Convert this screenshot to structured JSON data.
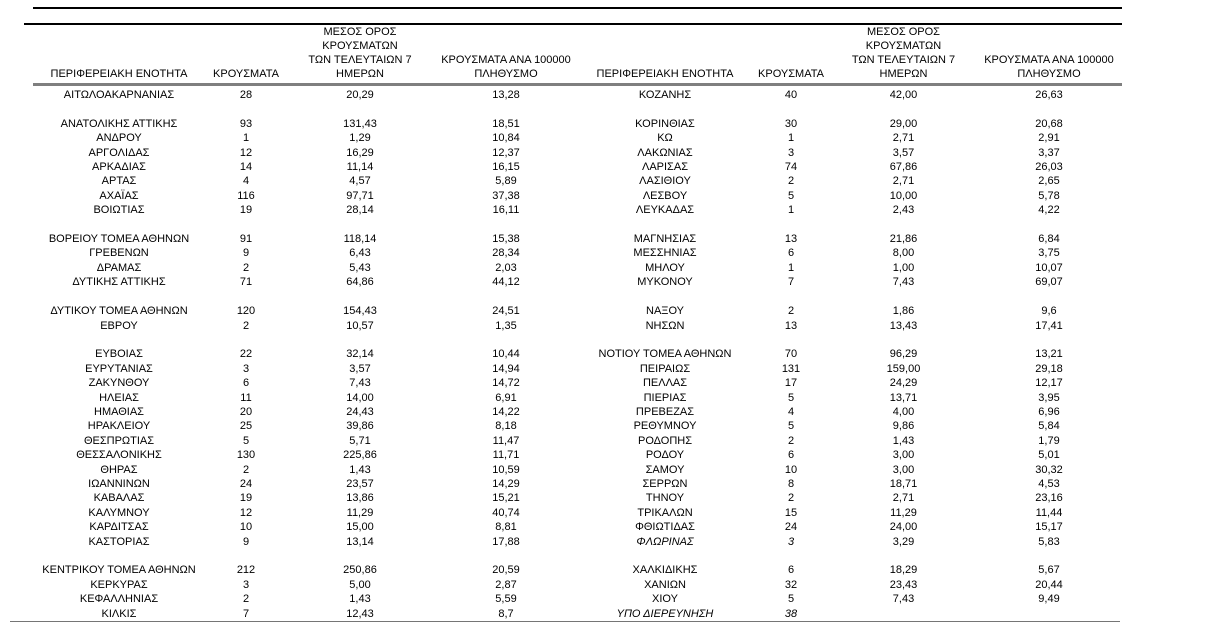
{
  "document": {
    "colors": {
      "text": "#000000",
      "rule_dark": "#000000",
      "rule_gray": "#7f7f7f"
    },
    "headers": {
      "region": "ΠΕΡΙΦΕΡΕΙΑΚΗ ΕΝΟΤΗΤΑ",
      "cases": "ΚΡΟΥΣΜΑΤΑ",
      "avg7": "ΜΕΣΟΣ ΟΡΟΣ ΚΡΟΥΣΜΑΤΩΝ\nΤΩΝ ΤΕΛΕΥΤΑΙΩΝ 7\nΗΜΕΡΩΝ",
      "per100k": "ΚΡΟΥΣΜΑΤΑ ΑΝΑ 100000\nΠΛΗΘΥΣΜΟ"
    },
    "left_rows": [
      {
        "region": "ΑΙΤΩΛΟΑΚΑΡΝΑΝΙΑΣ",
        "cases": "28",
        "avg7": "20,29",
        "per100k": "13,28"
      },
      {
        "region": "",
        "cases": "",
        "avg7": "",
        "per100k": ""
      },
      {
        "region": "ΑΝΑΤΟΛΙΚΗΣ ΑΤΤΙΚΗΣ",
        "cases": "93",
        "avg7": "131,43",
        "per100k": "18,51"
      },
      {
        "region": "ΑΝΔΡΟΥ",
        "cases": "1",
        "avg7": "1,29",
        "per100k": "10,84"
      },
      {
        "region": "ΑΡΓΟΛΙΔΑΣ",
        "cases": "12",
        "avg7": "16,29",
        "per100k": "12,37"
      },
      {
        "region": "ΑΡΚΑΔΙΑΣ",
        "cases": "14",
        "avg7": "11,14",
        "per100k": "16,15"
      },
      {
        "region": "ΑΡΤΑΣ",
        "cases": "4",
        "avg7": "4,57",
        "per100k": "5,89"
      },
      {
        "region": "ΑΧΑΪΑΣ",
        "cases": "116",
        "avg7": "97,71",
        "per100k": "37,38"
      },
      {
        "region": "ΒΟΙΩΤΙΑΣ",
        "cases": "19",
        "avg7": "28,14",
        "per100k": "16,11"
      },
      {
        "region": "",
        "cases": "",
        "avg7": "",
        "per100k": ""
      },
      {
        "region": "ΒΟΡΕΙΟΥ ΤΟΜΕΑ ΑΘΗΝΩΝ",
        "cases": "91",
        "avg7": "118,14",
        "per100k": "15,38"
      },
      {
        "region": "ΓΡΕΒΕΝΩΝ",
        "cases": "9",
        "avg7": "6,43",
        "per100k": "28,34"
      },
      {
        "region": "ΔΡΑΜΑΣ",
        "cases": "2",
        "avg7": "5,43",
        "per100k": "2,03"
      },
      {
        "region": "ΔΥΤΙΚΗΣ ΑΤΤΙΚΗΣ",
        "cases": "71",
        "avg7": "64,86",
        "per100k": "44,12"
      },
      {
        "region": "",
        "cases": "",
        "avg7": "",
        "per100k": ""
      },
      {
        "region": "ΔΥΤΙΚΟΥ ΤΟΜΕΑ ΑΘΗΝΩΝ",
        "cases": "120",
        "avg7": "154,43",
        "per100k": "24,51"
      },
      {
        "region": "ΕΒΡΟΥ",
        "cases": "2",
        "avg7": "10,57",
        "per100k": "1,35"
      },
      {
        "region": "",
        "cases": "",
        "avg7": "",
        "per100k": ""
      },
      {
        "region": "ΕΥΒΟΙΑΣ",
        "cases": "22",
        "avg7": "32,14",
        "per100k": "10,44"
      },
      {
        "region": "ΕΥΡΥΤΑΝΙΑΣ",
        "cases": "3",
        "avg7": "3,57",
        "per100k": "14,94"
      },
      {
        "region": "ΖΑΚΥΝΘΟΥ",
        "cases": "6",
        "avg7": "7,43",
        "per100k": "14,72"
      },
      {
        "region": "ΗΛΕΙΑΣ",
        "cases": "11",
        "avg7": "14,00",
        "per100k": "6,91"
      },
      {
        "region": "ΗΜΑΘΙΑΣ",
        "cases": "20",
        "avg7": "24,43",
        "per100k": "14,22"
      },
      {
        "region": "ΗΡΑΚΛΕΙΟΥ",
        "cases": "25",
        "avg7": "39,86",
        "per100k": "8,18"
      },
      {
        "region": "ΘΕΣΠΡΩΤΙΑΣ",
        "cases": "5",
        "avg7": "5,71",
        "per100k": "11,47"
      },
      {
        "region": "ΘΕΣΣΑΛΟΝΙΚΗΣ",
        "cases": "130",
        "avg7": "225,86",
        "per100k": "11,71"
      },
      {
        "region": "ΘΗΡΑΣ",
        "cases": "2",
        "avg7": "1,43",
        "per100k": "10,59"
      },
      {
        "region": "ΙΩΑΝΝΙΝΩΝ",
        "cases": "24",
        "avg7": "23,57",
        "per100k": "14,29"
      },
      {
        "region": "ΚΑΒΑΛΑΣ",
        "cases": "19",
        "avg7": "13,86",
        "per100k": "15,21"
      },
      {
        "region": "ΚΑΛΥΜΝΟΥ",
        "cases": "12",
        "avg7": "11,29",
        "per100k": "40,74"
      },
      {
        "region": "ΚΑΡΔΙΤΣΑΣ",
        "cases": "10",
        "avg7": "15,00",
        "per100k": "8,81"
      },
      {
        "region": "ΚΑΣΤΟΡΙΑΣ",
        "cases": "9",
        "avg7": "13,14",
        "per100k": "17,88"
      },
      {
        "region": "",
        "cases": "",
        "avg7": "",
        "per100k": ""
      },
      {
        "region": "ΚΕΝΤΡΙΚΟΥ ΤΟΜΕΑ ΑΘΗΝΩΝ",
        "cases": "212",
        "avg7": "250,86",
        "per100k": "20,59"
      },
      {
        "region": "ΚΕΡΚΥΡΑΣ",
        "cases": "3",
        "avg7": "5,00",
        "per100k": "2,87"
      },
      {
        "region": "ΚΕΦΑΛΛΗΝΙΑΣ",
        "cases": "2",
        "avg7": "1,43",
        "per100k": "5,59"
      },
      {
        "region": "ΚΙΛΚΙΣ",
        "cases": "7",
        "avg7": "12,43",
        "per100k": "8,7"
      }
    ],
    "right_rows": [
      {
        "region": "ΚΟΖΑΝΗΣ",
        "cases": "40",
        "avg7": "42,00",
        "per100k": "26,63"
      },
      {
        "region": "",
        "cases": "",
        "avg7": "",
        "per100k": ""
      },
      {
        "region": "ΚΟΡΙΝΘΙΑΣ",
        "cases": "30",
        "avg7": "29,00",
        "per100k": "20,68"
      },
      {
        "region": "ΚΩ",
        "cases": "1",
        "avg7": "2,71",
        "per100k": "2,91"
      },
      {
        "region": "ΛΑΚΩΝΙΑΣ",
        "cases": "3",
        "avg7": "3,57",
        "per100k": "3,37"
      },
      {
        "region": "ΛΑΡΙΣΑΣ",
        "cases": "74",
        "avg7": "67,86",
        "per100k": "26,03"
      },
      {
        "region": "ΛΑΣΙΘΙΟΥ",
        "cases": "2",
        "avg7": "2,71",
        "per100k": "2,65"
      },
      {
        "region": "ΛΕΣΒΟΥ",
        "cases": "5",
        "avg7": "10,00",
        "per100k": "5,78"
      },
      {
        "region": "ΛΕΥΚΑΔΑΣ",
        "cases": "1",
        "avg7": "2,43",
        "per100k": "4,22"
      },
      {
        "region": "",
        "cases": "",
        "avg7": "",
        "per100k": ""
      },
      {
        "region": "ΜΑΓΝΗΣΙΑΣ",
        "cases": "13",
        "avg7": "21,86",
        "per100k": "6,84"
      },
      {
        "region": "ΜΕΣΣΗΝΙΑΣ",
        "cases": "6",
        "avg7": "8,00",
        "per100k": "3,75"
      },
      {
        "region": "ΜΗΛΟΥ",
        "cases": "1",
        "avg7": "1,00",
        "per100k": "10,07"
      },
      {
        "region": "ΜΥΚΟΝΟΥ",
        "cases": "7",
        "avg7": "7,43",
        "per100k": "69,07"
      },
      {
        "region": "",
        "cases": "",
        "avg7": "",
        "per100k": ""
      },
      {
        "region": "ΝΑΞΟΥ",
        "cases": "2",
        "avg7": "1,86",
        "per100k": "9,6"
      },
      {
        "region": "ΝΗΣΩΝ",
        "cases": "13",
        "avg7": "13,43",
        "per100k": "17,41"
      },
      {
        "region": "",
        "cases": "",
        "avg7": "",
        "per100k": ""
      },
      {
        "region": "ΝΟΤΙΟΥ ΤΟΜΕΑ ΑΘΗΝΩΝ",
        "cases": "70",
        "avg7": "96,29",
        "per100k": "13,21"
      },
      {
        "region": "ΠΕΙΡΑΙΩΣ",
        "cases": "131",
        "avg7": "159,00",
        "per100k": "29,18"
      },
      {
        "region": "ΠΕΛΛΑΣ",
        "cases": "17",
        "avg7": "24,29",
        "per100k": "12,17"
      },
      {
        "region": "ΠΙΕΡΙΑΣ",
        "cases": "5",
        "avg7": "13,71",
        "per100k": "3,95"
      },
      {
        "region": "ΠΡΕΒΕΖΑΣ",
        "cases": "4",
        "avg7": "4,00",
        "per100k": "6,96"
      },
      {
        "region": "ΡΕΘΥΜΝΟΥ",
        "cases": "5",
        "avg7": "9,86",
        "per100k": "5,84"
      },
      {
        "region": "ΡΟΔΟΠΗΣ",
        "cases": "2",
        "avg7": "1,43",
        "per100k": "1,79"
      },
      {
        "region": "ΡΟΔΟΥ",
        "cases": "6",
        "avg7": "3,00",
        "per100k": "5,01"
      },
      {
        "region": "ΣΑΜΟΥ",
        "cases": "10",
        "avg7": "3,00",
        "per100k": "30,32"
      },
      {
        "region": "ΣΕΡΡΩΝ",
        "cases": "8",
        "avg7": "18,71",
        "per100k": "4,53"
      },
      {
        "region": "ΤΗΝΟΥ",
        "cases": "2",
        "avg7": "2,71",
        "per100k": "23,16"
      },
      {
        "region": "ΤΡΙΚΑΛΩΝ",
        "cases": "15",
        "avg7": "11,29",
        "per100k": "11,44"
      },
      {
        "region": "ΦΘΙΩΤΙΔΑΣ",
        "cases": "24",
        "avg7": "24,00",
        "per100k": "15,17"
      },
      {
        "region": "ΦΛΩΡΙΝΑΣ",
        "cases": "3",
        "avg7": "3,29",
        "per100k": "5,83",
        "italic": true
      },
      {
        "region": "",
        "cases": "",
        "avg7": "",
        "per100k": ""
      },
      {
        "region": "ΧΑΛΚΙΔΙΚΗΣ",
        "cases": "6",
        "avg7": "18,29",
        "per100k": "5,67"
      },
      {
        "region": "ΧΑΝΙΩΝ",
        "cases": "32",
        "avg7": "23,43",
        "per100k": "20,44"
      },
      {
        "region": "ΧΙΟΥ",
        "cases": "5",
        "avg7": "7,43",
        "per100k": "9,49"
      },
      {
        "region": "ΥΠΟ ΔΙΕΡΕΥΝΗΣΗ",
        "cases": "38",
        "avg7": "",
        "per100k": "",
        "italic": true
      }
    ]
  }
}
